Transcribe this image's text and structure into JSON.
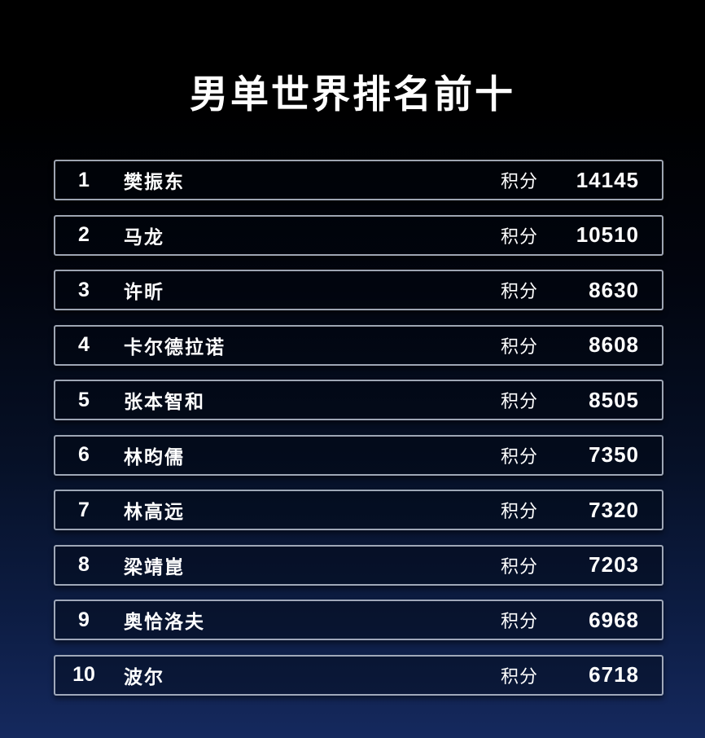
{
  "title": "男单世界排名前十",
  "points_label": "积分",
  "colors": {
    "background_top": "#000000",
    "background_bottom": "#15295e",
    "row_border": "#c6ced c",
    "text": "#ffffff"
  },
  "rankings": [
    {
      "rank": "1",
      "name": "樊振东",
      "points": "14145"
    },
    {
      "rank": "2",
      "name": "马龙",
      "points": "10510"
    },
    {
      "rank": "3",
      "name": "许昕",
      "points": "8630"
    },
    {
      "rank": "4",
      "name": "卡尔德拉诺",
      "points": "8608"
    },
    {
      "rank": "5",
      "name": "张本智和",
      "points": "8505"
    },
    {
      "rank": "6",
      "name": "林昀儒",
      "points": "7350"
    },
    {
      "rank": "7",
      "name": "林高远",
      "points": "7320"
    },
    {
      "rank": "8",
      "name": "梁靖崑",
      "points": "7203"
    },
    {
      "rank": "9",
      "name": "奥恰洛夫",
      "points": "6968"
    },
    {
      "rank": "10",
      "name": "波尔",
      "points": "6718"
    }
  ]
}
